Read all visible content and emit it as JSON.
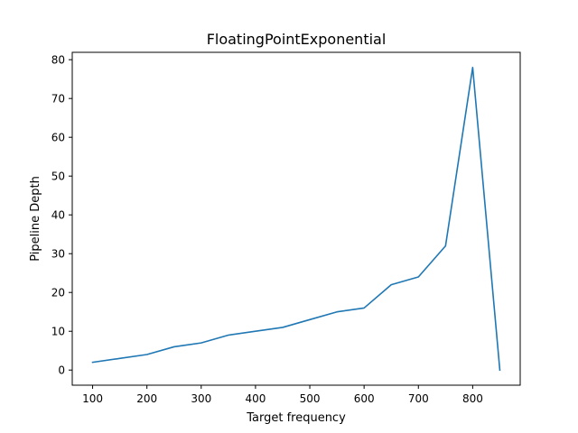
{
  "chart_data": {
    "type": "line",
    "title": "FloatingPointExponential",
    "xlabel": "Target frequency",
    "ylabel": "Pipeline Depth",
    "x": [
      100,
      150,
      200,
      250,
      300,
      350,
      400,
      450,
      500,
      550,
      600,
      650,
      700,
      750,
      800,
      850
    ],
    "series": [
      {
        "values": [
          2,
          3,
          4,
          6,
          7,
          9,
          10,
          11,
          13,
          15,
          16,
          22,
          24,
          32,
          78,
          0
        ],
        "color": "#1f77b4"
      }
    ],
    "xticks": [
      100,
      200,
      300,
      400,
      500,
      600,
      700,
      800
    ],
    "yticks": [
      0,
      10,
      20,
      30,
      40,
      50,
      60,
      70,
      80
    ],
    "xlim": [
      62.5,
      887.5
    ],
    "ylim": [
      -3.9,
      81.9
    ],
    "grid": false,
    "legend": "none"
  }
}
